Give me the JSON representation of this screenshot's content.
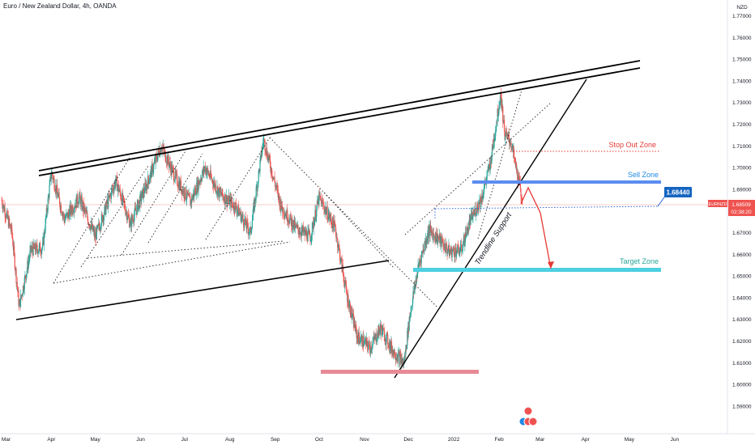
{
  "header": {
    "title": "Euro / New Zealand Dollar, 4h, OANDA"
  },
  "colors": {
    "up": "#26a69a",
    "down": "#ef5350",
    "line": "#000000",
    "stop": "#e53935",
    "sell": "#5b8def",
    "target": "#4dd0e1",
    "support_zone": "#e88a96",
    "price_tag": "#1565c0",
    "symbol_tag": "#ef5350"
  },
  "annotations": {
    "stop_out_zone": "Stop Out Zone",
    "sell_zone": "Sell Zone",
    "target_zone": "Target Zone",
    "trendline_support": "Trendline Support"
  },
  "price_tag": "1.68440",
  "symbol_tag": {
    "symbol": "EURNZD",
    "price": "1.68509",
    "countdown": "02:38:20"
  },
  "chart_data": {
    "type": "candlestick",
    "title": "Euro / New Zealand Dollar, 4h, OANDA",
    "currency": "NZD",
    "y_axis_ticks": [
      "1.77000",
      "1.76000",
      "1.75000",
      "1.74000",
      "1.73000",
      "1.72000",
      "1.71000",
      "1.70000",
      "1.69000",
      "1.67000",
      "1.66000",
      "1.65000",
      "1.64000",
      "1.63000",
      "1.62000",
      "1.61000",
      "1.60000",
      "1.59000"
    ],
    "ylim": [
      1.5866,
      1.7739
    ],
    "x_axis_labels": [
      "Mar",
      "Apr",
      "May",
      "Jun",
      "Jul",
      "Aug",
      "Sep",
      "Oct",
      "Nov",
      "Dec",
      "2022",
      "Feb",
      "Mar",
      "Apr",
      "May",
      "Jun"
    ],
    "approx_path": [
      {
        "date": "2021-02-26",
        "close": 1.685
      },
      {
        "date": "2021-03-05",
        "close": 1.67
      },
      {
        "date": "2021-03-10",
        "close": 1.636
      },
      {
        "date": "2021-03-18",
        "close": 1.662
      },
      {
        "date": "2021-03-26",
        "close": 1.663
      },
      {
        "date": "2021-04-01",
        "close": 1.698
      },
      {
        "date": "2021-04-10",
        "close": 1.676
      },
      {
        "date": "2021-04-20",
        "close": 1.686
      },
      {
        "date": "2021-05-01",
        "close": 1.668
      },
      {
        "date": "2021-05-15",
        "close": 1.694
      },
      {
        "date": "2021-05-25",
        "close": 1.674
      },
      {
        "date": "2021-06-05",
        "close": 1.692
      },
      {
        "date": "2021-06-15",
        "close": 1.71
      },
      {
        "date": "2021-06-25",
        "close": 1.695
      },
      {
        "date": "2021-07-05",
        "close": 1.684
      },
      {
        "date": "2021-07-15",
        "close": 1.7
      },
      {
        "date": "2021-07-25",
        "close": 1.688
      },
      {
        "date": "2021-08-05",
        "close": 1.682
      },
      {
        "date": "2021-08-15",
        "close": 1.67
      },
      {
        "date": "2021-08-24",
        "close": 1.713
      },
      {
        "date": "2021-09-05",
        "close": 1.682
      },
      {
        "date": "2021-09-15",
        "close": 1.672
      },
      {
        "date": "2021-09-25",
        "close": 1.668
      },
      {
        "date": "2021-10-01",
        "close": 1.686
      },
      {
        "date": "2021-10-12",
        "close": 1.672
      },
      {
        "date": "2021-10-20",
        "close": 1.641
      },
      {
        "date": "2021-10-27",
        "close": 1.622
      },
      {
        "date": "2021-11-05",
        "close": 1.617
      },
      {
        "date": "2021-11-12",
        "close": 1.626
      },
      {
        "date": "2021-11-20",
        "close": 1.616
      },
      {
        "date": "2021-11-25",
        "close": 1.612
      },
      {
        "date": "2021-11-28",
        "close": 1.6095
      },
      {
        "date": "2021-12-02",
        "close": 1.632
      },
      {
        "date": "2021-12-08",
        "close": 1.655
      },
      {
        "date": "2021-12-15",
        "close": 1.671
      },
      {
        "date": "2021-12-22",
        "close": 1.667
      },
      {
        "date": "2021-12-29",
        "close": 1.661
      },
      {
        "date": "2022-01-06",
        "close": 1.662
      },
      {
        "date": "2022-01-12",
        "close": 1.675
      },
      {
        "date": "2022-01-20",
        "close": 1.686
      },
      {
        "date": "2022-01-26",
        "close": 1.702
      },
      {
        "date": "2022-02-02",
        "close": 1.734
      },
      {
        "date": "2022-02-05",
        "close": 1.715
      },
      {
        "date": "2022-02-09",
        "close": 1.712
      },
      {
        "date": "2022-02-14",
        "close": 1.695
      },
      {
        "date": "2022-02-17",
        "close": 1.685
      }
    ]
  }
}
